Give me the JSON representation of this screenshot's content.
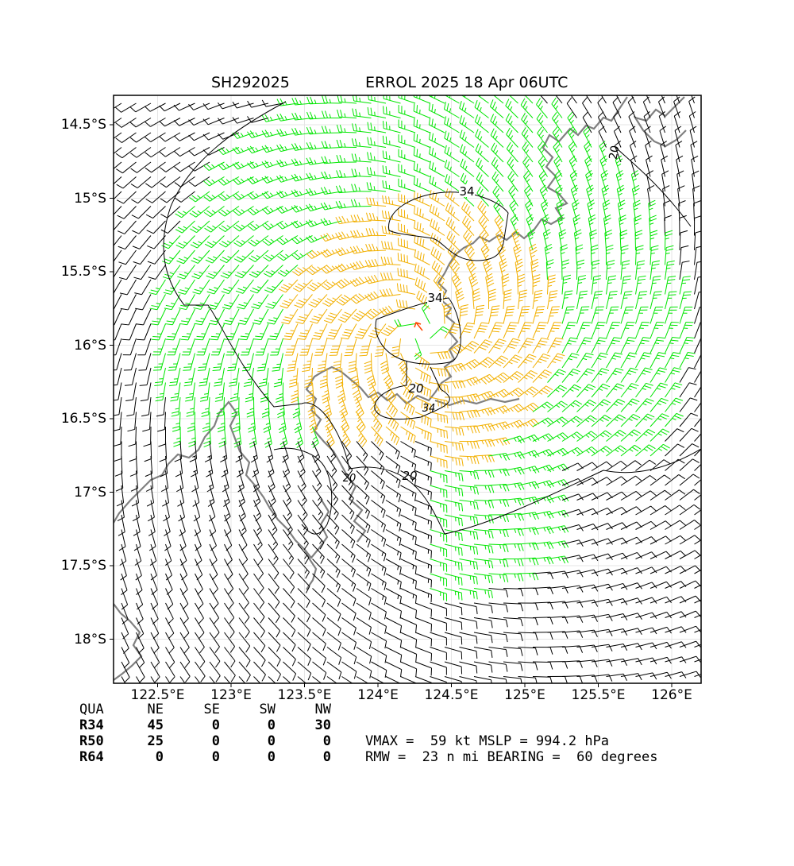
{
  "header": {
    "storm_id": "SH292025",
    "storm_title": "ERROL 2025 18 Apr 06UTC"
  },
  "axes": {
    "lat_ticks": [
      "14.5°S",
      "15°S",
      "15.5°S",
      "16°S",
      "16.5°S",
      "17°S",
      "17.5°S",
      "18°S"
    ],
    "lon_ticks": [
      "122.5°E",
      "123°E",
      "123.5°E",
      "124°E",
      "124.5°E",
      "125°E",
      "125.5°E",
      "126°E"
    ],
    "lon_range": [
      122.2,
      126.2
    ],
    "lat_range": [
      -14.3,
      -18.3
    ]
  },
  "contour_labels": {
    "outer_top": "20",
    "upper_34": "34",
    "lower_34": "34",
    "eye_20": "20",
    "eye_34": "34",
    "south_20": "20",
    "west_20": "20"
  },
  "wind_radii": {
    "header": [
      "QUA",
      "NE",
      "SE",
      "SW",
      "NW"
    ],
    "rows": [
      {
        "label": "R34",
        "values": [
          "45",
          "0",
          "0",
          "30"
        ]
      },
      {
        "label": "R50",
        "values": [
          "25",
          "0",
          "0",
          "0"
        ]
      },
      {
        "label": "R64",
        "values": [
          "0",
          "0",
          "0",
          "0"
        ]
      }
    ]
  },
  "intensity": {
    "line1": "VMAX =  59 kt MSLP = 994.2 hPa",
    "line2": "RMW =  23 n mi BEARING =  60 degrees"
  },
  "colors": {
    "barb_black": "#000000",
    "barb_green": "#00e600",
    "barb_orange": "#f2b000",
    "coast": "#808080",
    "contour": "#000000",
    "center_arrow": "#ff4500"
  }
}
